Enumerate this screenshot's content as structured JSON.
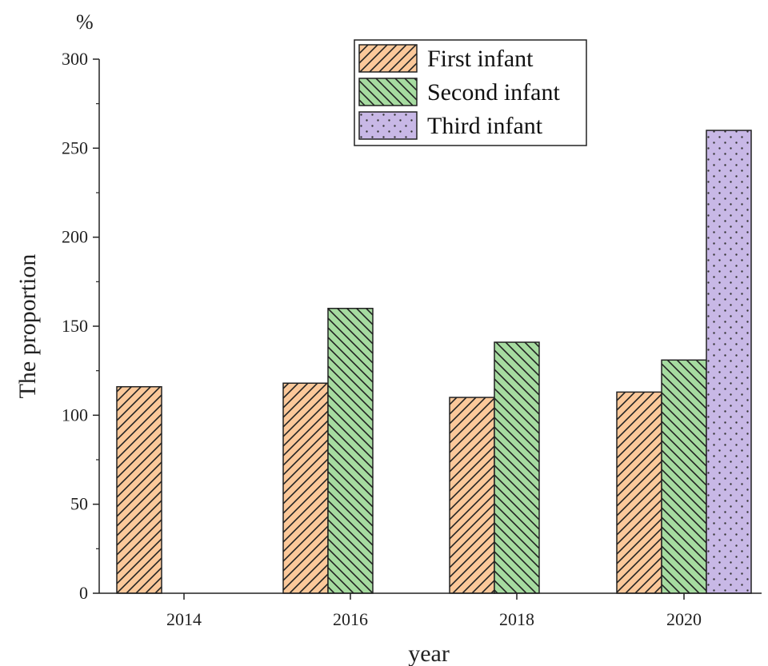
{
  "chart_data": {
    "type": "bar",
    "unit": "%",
    "xlabel": "year",
    "ylabel": "The proportion",
    "categories": [
      "2014",
      "2016",
      "2018",
      "2020"
    ],
    "ylim": [
      0,
      300
    ],
    "yticks": [
      0,
      50,
      100,
      150,
      200,
      250,
      300
    ],
    "grid": false,
    "legend_position": "top-right",
    "series": [
      {
        "name": "First infant",
        "values": [
          116,
          118,
          110,
          113
        ],
        "color": "#fbc89a",
        "pattern": "diagonal-forward"
      },
      {
        "name": "Second infant",
        "values": [
          null,
          160,
          141,
          131
        ],
        "color": "#a6dba0",
        "pattern": "diagonal-backward"
      },
      {
        "name": "Third infant",
        "values": [
          null,
          null,
          null,
          260
        ],
        "color": "#c8b8e6",
        "pattern": "dots"
      }
    ]
  }
}
